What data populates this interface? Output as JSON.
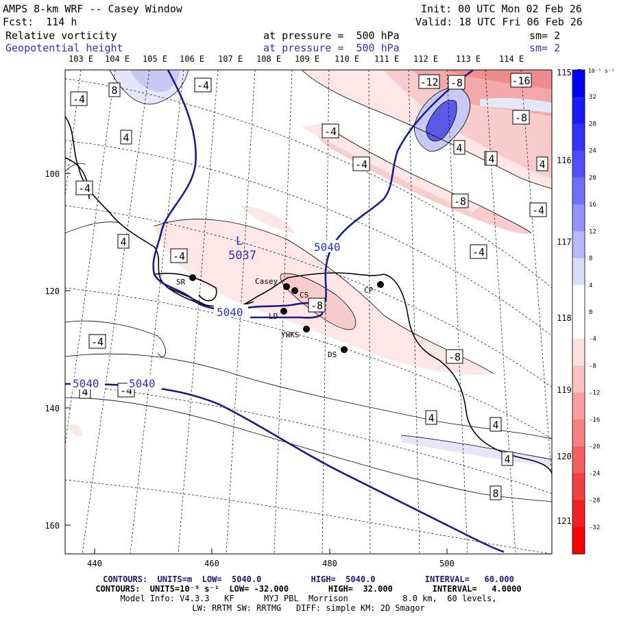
{
  "header": {
    "title": "AMPS 8-km WRF -- Casey Window",
    "init": "Init: 00 UTC Mon 02 Feb 26",
    "fcst": "Fcst:  114 h",
    "valid": "Valid: 18 UTC Fri 06 Feb 26",
    "field1_name": "Relative vorticity",
    "field1_level": "at pressure =  500 hPa",
    "field1_sm": "sm= 2",
    "field2_name": "Geopotential height",
    "field2_level": "at pressure =  500 hPa",
    "field2_sm": "sm= 2"
  },
  "longitude_labels_top": [
    "103 E",
    "104 E",
    "105 E",
    "106 E",
    "107 E",
    "108 E",
    "109 E",
    "110 E",
    "111 E",
    "112 E",
    "113 E",
    "114 E"
  ],
  "longitude_labels_right": [
    "115 E",
    "116 E",
    "117 E",
    "118 E",
    "119 E",
    "120 E",
    "121 E"
  ],
  "x_axis_ticks": [
    "440",
    "460",
    "480",
    "500"
  ],
  "y_axis_ticks": [
    "100",
    "120",
    "140",
    "160"
  ],
  "colorbar": {
    "units": "10⁻⁵ s⁻¹",
    "labels": [
      "32",
      "28",
      "24",
      "20",
      "16",
      "12",
      "8",
      "4",
      "0",
      "-4",
      "-8",
      "-12",
      "-16",
      "-20",
      "-24",
      "-28",
      "-32"
    ]
  },
  "stations": [
    {
      "name": "SR"
    },
    {
      "name": "Casey"
    },
    {
      "name": "CS"
    },
    {
      "name": "LD"
    },
    {
      "name": "YWKS"
    },
    {
      "name": "CP"
    },
    {
      "name": "DS"
    }
  ],
  "low": {
    "letter": "L",
    "value": "5037"
  },
  "height_labels": [
    "5040",
    "5040",
    "5040",
    "5040"
  ],
  "vort_labels": [
    "8",
    "-4",
    "-4",
    "4",
    "-4",
    "4",
    "-4",
    "-4",
    "-4",
    "-8",
    "-12",
    "-8",
    "-16",
    "-8",
    "4",
    "4",
    "8",
    "-8",
    "-4",
    "-4",
    "-8",
    "-4",
    "4",
    "-4",
    "4",
    "4",
    "4",
    "8",
    "4",
    "4"
  ],
  "footer": {
    "line1": "CONTOURS:  UNITS=m  LOW=  5040.0          HIGH=  5040.0          INTERVAL=   60.000",
    "line2": "CONTOURS:  UNITS=10⁻⁵ s⁻¹  LOW= -32.000        HIGH=  32.000        INTERVAL=   4.0000",
    "line3": "Model Info: V4.3.3   KF      MYJ PBL  Morrison           8.0 km,  60 levels,",
    "line4": "LW: RRTM SW: RRTMG   DIFF: simple KM: 2D Smagor"
  },
  "colors": {
    "height_contour": "#1a1a8c",
    "pos_vort": "#4a4ae0",
    "neg_vort": "#e03030",
    "coast": "#000000"
  }
}
